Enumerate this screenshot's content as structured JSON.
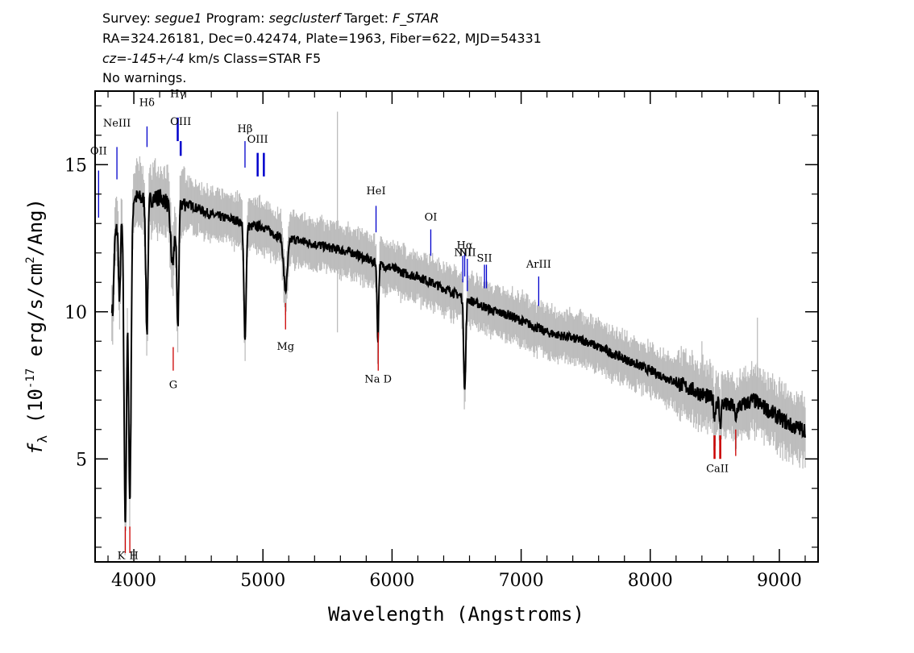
{
  "header": {
    "survey_label": "Survey:",
    "survey": "segue1",
    "program_label": "Program:",
    "program": "segclusterf",
    "target_label": "Target:",
    "target": "F_STAR",
    "line2": "RA=324.26181, Dec=0.42474, Plate=1963, Fiber=622, MJD=54331",
    "cz_label": "cz=",
    "cz": "-145+/-4",
    "cz_unit": "km/s Class=STAR F5",
    "line4": "No warnings."
  },
  "chart_data": {
    "type": "line",
    "xlabel": "Wavelength (Angstroms)",
    "ylabel_prefix": "f",
    "ylabel_sub": "λ",
    "ylabel_mid": " (10",
    "ylabel_exp": "-17",
    "ylabel_unit": " erg/s/cm",
    "ylabel_exp2": "2",
    "ylabel_suffix": "/Ang)",
    "xlim": [
      3700,
      9300
    ],
    "ylim": [
      1.5,
      17.5
    ],
    "x_ticks": [
      4000,
      5000,
      6000,
      7000,
      8000,
      9000
    ],
    "x_tick_labels": [
      "4000",
      "5000",
      "6000",
      "7000",
      "8000",
      "9000"
    ],
    "y_ticks": [
      5,
      10,
      15
    ],
    "y_tick_labels": [
      "5",
      "10",
      "15"
    ],
    "colors": {
      "spectrum": "#000000",
      "error": "#bdbdbd",
      "emission": "#0000cc",
      "absorption": "#cc0000"
    },
    "continuum": [
      [
        3830,
        12.4
      ],
      [
        3900,
        13.2
      ],
      [
        4000,
        13.9
      ],
      [
        4100,
        13.8
      ],
      [
        4200,
        13.9
      ],
      [
        4300,
        13.6
      ],
      [
        4400,
        13.7
      ],
      [
        4500,
        13.5
      ],
      [
        4600,
        13.3
      ],
      [
        4700,
        13.2
      ],
      [
        4800,
        13.1
      ],
      [
        4900,
        12.9
      ],
      [
        5000,
        12.9
      ],
      [
        5100,
        12.6
      ],
      [
        5200,
        12.5
      ],
      [
        5300,
        12.4
      ],
      [
        5400,
        12.3
      ],
      [
        5500,
        12.2
      ],
      [
        5600,
        12.1
      ],
      [
        5700,
        12.0
      ],
      [
        5800,
        11.8
      ],
      [
        5900,
        11.6
      ],
      [
        6000,
        11.5
      ],
      [
        6100,
        11.3
      ],
      [
        6200,
        11.2
      ],
      [
        6300,
        11.0
      ],
      [
        6400,
        10.8
      ],
      [
        6500,
        10.6
      ],
      [
        6600,
        10.4
      ],
      [
        6700,
        10.2
      ],
      [
        6800,
        10.0
      ],
      [
        6900,
        9.9
      ],
      [
        7000,
        9.7
      ],
      [
        7100,
        9.5
      ],
      [
        7200,
        9.3
      ],
      [
        7300,
        9.2
      ],
      [
        7400,
        9.1
      ],
      [
        7500,
        9.0
      ],
      [
        7600,
        8.8
      ],
      [
        7700,
        8.6
      ],
      [
        7800,
        8.4
      ],
      [
        7900,
        8.2
      ],
      [
        8000,
        8.0
      ],
      [
        8100,
        7.8
      ],
      [
        8200,
        7.6
      ],
      [
        8300,
        7.4
      ],
      [
        8400,
        7.2
      ],
      [
        8500,
        7.0
      ],
      [
        8600,
        6.8
      ],
      [
        8700,
        6.8
      ],
      [
        8800,
        7.0
      ],
      [
        8900,
        6.7
      ],
      [
        9000,
        6.4
      ],
      [
        9100,
        6.1
      ],
      [
        9200,
        6.0
      ]
    ],
    "absorption_features": [
      [
        3835,
        2.5,
        9
      ],
      [
        3889,
        2.8,
        7
      ],
      [
        3934,
        10.5,
        10
      ],
      [
        3969,
        10.0,
        10
      ],
      [
        4101,
        4.5,
        8
      ],
      [
        4300,
        2.0,
        15
      ],
      [
        4340,
        4.2,
        8
      ],
      [
        4861,
        3.8,
        9
      ],
      [
        5175,
        1.8,
        15
      ],
      [
        5890,
        2.6,
        6
      ],
      [
        6563,
        3.1,
        8
      ],
      [
        8498,
        0.6,
        6
      ],
      [
        8542,
        0.8,
        6
      ],
      [
        8662,
        0.6,
        6
      ]
    ],
    "emission_lines": [
      {
        "label": "OII",
        "wave": 3727,
        "top": 14.8,
        "bottom": 13.2,
        "label_y": 15.35
      },
      {
        "label": "NeIII",
        "wave": 3869,
        "top": 15.6,
        "bottom": 14.5,
        "label_y": 16.3
      },
      {
        "label": "Hδ",
        "wave": 4102,
        "top": 16.3,
        "bottom": 15.6,
        "label_y": 17.0
      },
      {
        "label": "Hγ",
        "wave": 4340,
        "top": 16.6,
        "bottom": 15.8,
        "label_y": 17.3
      },
      {
        "label": "OIII",
        "wave": 4363,
        "top": 15.8,
        "bottom": 15.3,
        "label_y": 16.35
      },
      {
        "label": "Hβ",
        "wave": 4861,
        "top": 15.8,
        "bottom": 14.9,
        "label_y": 16.1
      },
      {
        "label": "OIII",
        "wave": 4959,
        "top": 15.4,
        "bottom": 14.6,
        "label_y": 15.75
      },
      {
        "label": "",
        "wave": 5007,
        "top": 15.4,
        "bottom": 14.6,
        "label_y": 15.75
      },
      {
        "label": "HeI",
        "wave": 5876,
        "top": 13.6,
        "bottom": 12.7,
        "label_y": 14.0
      },
      {
        "label": "OI",
        "wave": 6300,
        "top": 12.8,
        "bottom": 11.9,
        "label_y": 13.1
      },
      {
        "label": "NII",
        "wave": 6548,
        "top": 11.9,
        "bottom": 11.0,
        "label_y": 11.9
      },
      {
        "label": "Hα",
        "wave": 6563,
        "top": 12.0,
        "bottom": 11.2,
        "label_y": 12.15
      },
      {
        "label": "NII",
        "wave": 6583,
        "top": 11.8,
        "bottom": 10.7,
        "label_y": 11.9
      },
      {
        "label": "SII",
        "wave": 6716,
        "top": 11.6,
        "bottom": 10.8,
        "label_y": 11.7
      },
      {
        "label": "",
        "wave": 6731,
        "top": 11.6,
        "bottom": 10.8,
        "label_y": 11.7
      },
      {
        "label": "ArIII",
        "wave": 7136,
        "top": 11.2,
        "bottom": 10.2,
        "label_y": 11.5
      }
    ],
    "absorption_lines": [
      {
        "label": "K",
        "wave": 3934,
        "top": 2.7,
        "bottom": 1.8,
        "label_y": 1.6
      },
      {
        "label": "H",
        "wave": 3969,
        "top": 2.7,
        "bottom": 1.8,
        "label_y": 1.6
      },
      {
        "label": "G",
        "wave": 4305,
        "top": 8.8,
        "bottom": 8.0,
        "label_y": 7.4
      },
      {
        "label": "Mg",
        "wave": 5175,
        "top": 10.3,
        "bottom": 9.4,
        "label_y": 8.7
      },
      {
        "label": "Na D",
        "wave": 5893,
        "top": 9.3,
        "bottom": 8.0,
        "label_y": 7.6
      },
      {
        "label": "CaII",
        "wave": 8498,
        "top": 5.8,
        "bottom": 5.0,
        "label_y": 4.55
      },
      {
        "label": "",
        "wave": 8542,
        "top": 5.8,
        "bottom": 5.0,
        "label_y": 4.55
      },
      {
        "label": "",
        "wave": 8662,
        "top": 6.0,
        "bottom": 5.1,
        "label_y": 4.55
      }
    ]
  }
}
